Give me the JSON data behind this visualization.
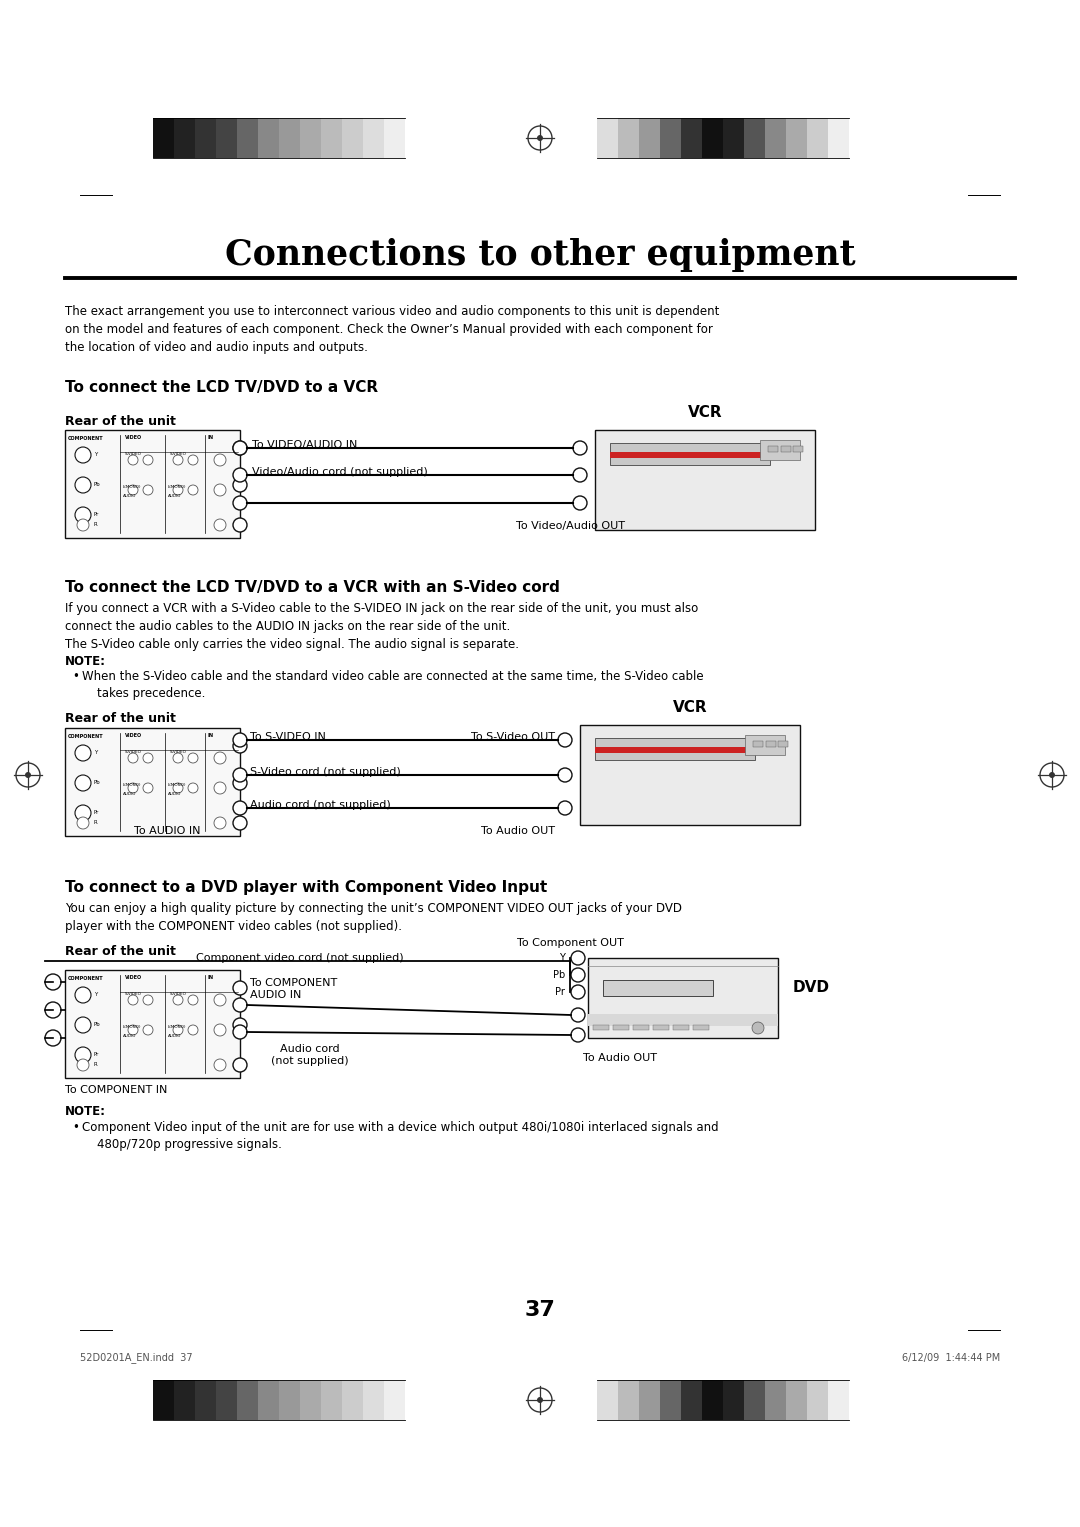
{
  "title": "Connections to other equipment",
  "bg_color": "#ffffff",
  "text_color": "#000000",
  "page_number": "37",
  "header_bar_colors_left": [
    "#111111",
    "#222222",
    "#333333",
    "#444444",
    "#666666",
    "#888888",
    "#999999",
    "#aaaaaa",
    "#bbbbbb",
    "#cccccc",
    "#dddddd",
    "#eeeeee"
  ],
  "header_bar_colors_right": [
    "#dddddd",
    "#bbbbbb",
    "#999999",
    "#666666",
    "#333333",
    "#111111",
    "#222222",
    "#555555",
    "#888888",
    "#aaaaaa",
    "#cccccc",
    "#eeeeee"
  ],
  "intro_text": "The exact arrangement you use to interconnect various video and audio components to this unit is dependent\non the model and features of each component. Check the Owner’s Manual provided with each component for\nthe location of video and audio inputs and outputs.",
  "section1_heading": "To connect the LCD TV/DVD to a VCR",
  "section1_rear_label": "Rear of the unit",
  "section1_vcr_label": "VCR",
  "section1_label1": "To VIDEO/AUDIO IN",
  "section1_label2": "Video/Audio cord (not supplied)",
  "section1_label3": "To Video/Audio OUT",
  "section2_heading": "To connect the LCD TV/DVD to a VCR with an S-Video cord",
  "section2_body": "If you connect a VCR with a S-Video cable to the S-VIDEO IN jack on the rear side of the unit, you must also\nconnect the audio cables to the AUDIO IN jacks on the rear side of the unit.\nThe S-Video cable only carries the video signal. The audio signal is separate.",
  "section2_note_heading": "NOTE:",
  "section2_note_bullet": "When the S-Video cable and the standard video cable are connected at the same time, the S-Video cable\n    takes precedence.",
  "section2_rear_label": "Rear of the unit",
  "section2_vcr_label": "VCR",
  "section2_label1": "To S-VIDEO IN",
  "section2_label2": "To S-Video OUT",
  "section2_label3": "S-Video cord (not supplied)",
  "section2_label4": "Audio cord (not supplied)",
  "section2_label5": "To AUDIO IN",
  "section2_label6": "To Audio OUT",
  "section3_heading": "To connect to a DVD player with Component Video Input",
  "section3_body": "You can enjoy a high quality picture by connecting the unit’s COMPONENT VIDEO OUT jacks of your DVD\nplayer with the COMPONENT video cables (not supplied).",
  "section3_rear_label": "Rear of the unit",
  "section3_dvd_label": "DVD",
  "section3_label1": "To Component OUT",
  "section3_label2": "Y",
  "section3_label3": "Pb",
  "section3_label4": "Pr",
  "section3_label5": "Component video cord (not supplied)",
  "section3_label6": "To COMPONENT\nAUDIO IN",
  "section3_label7": "Audio cord\n(not supplied)",
  "section3_label8": "To Audio OUT",
  "section3_label9": "To COMPONENT IN",
  "section4_note_heading": "NOTE:",
  "section4_note_bullet": "Component Video input of the unit are for use with a device which output 480i/1080i interlaced signals and\n    480p/720p progressive signals.",
  "footer_left": "52D0201A_EN.indd  37",
  "footer_right": "6/12/09  1:44:44 PM"
}
